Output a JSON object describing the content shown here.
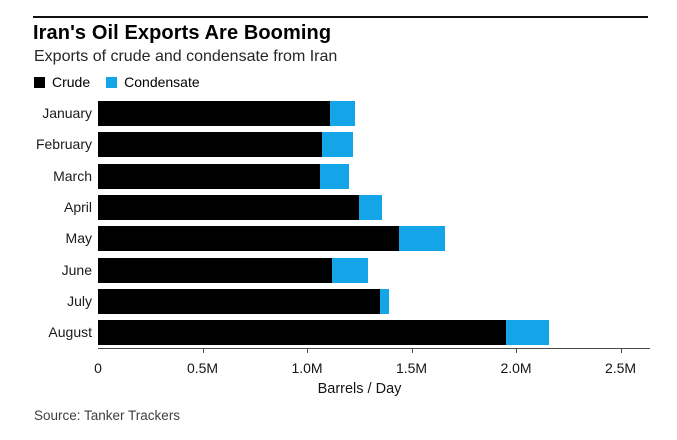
{
  "header": {
    "title": "Iran's Oil Exports Are Booming",
    "subtitle": "Exports of crude and condensate from Iran"
  },
  "chart_data": {
    "type": "bar",
    "orientation": "horizontal",
    "stacked": true,
    "title": "Iran's Oil Exports Are Booming",
    "subtitle": "Exports of crude and condensate from Iran",
    "categories": [
      "January",
      "February",
      "March",
      "April",
      "May",
      "June",
      "July",
      "August"
    ],
    "series": [
      {
        "name": "Crude",
        "color": "#000000",
        "values": [
          1.11,
          1.07,
          1.06,
          1.25,
          1.44,
          1.12,
          1.35,
          1.95
        ]
      },
      {
        "name": "Condensate",
        "color": "#14a5e8",
        "values": [
          0.12,
          0.15,
          0.14,
          0.11,
          0.22,
          0.17,
          0.04,
          0.21
        ]
      }
    ],
    "unit": "million barrels per day",
    "xlabel": "Barrels / Day",
    "xlim": [
      0,
      2.63
    ],
    "xticks": [
      {
        "value": 0,
        "label": "0"
      },
      {
        "value": 0.5,
        "label": "0.5M"
      },
      {
        "value": 1.0,
        "label": "1.0M"
      },
      {
        "value": 1.5,
        "label": "1.5M"
      },
      {
        "value": 2.0,
        "label": "2.0M"
      },
      {
        "value": 2.5,
        "label": "2.5M"
      }
    ],
    "grid": false,
    "legend_position": "top-left"
  },
  "footer": {
    "source": "Source: Tanker Trackers"
  }
}
